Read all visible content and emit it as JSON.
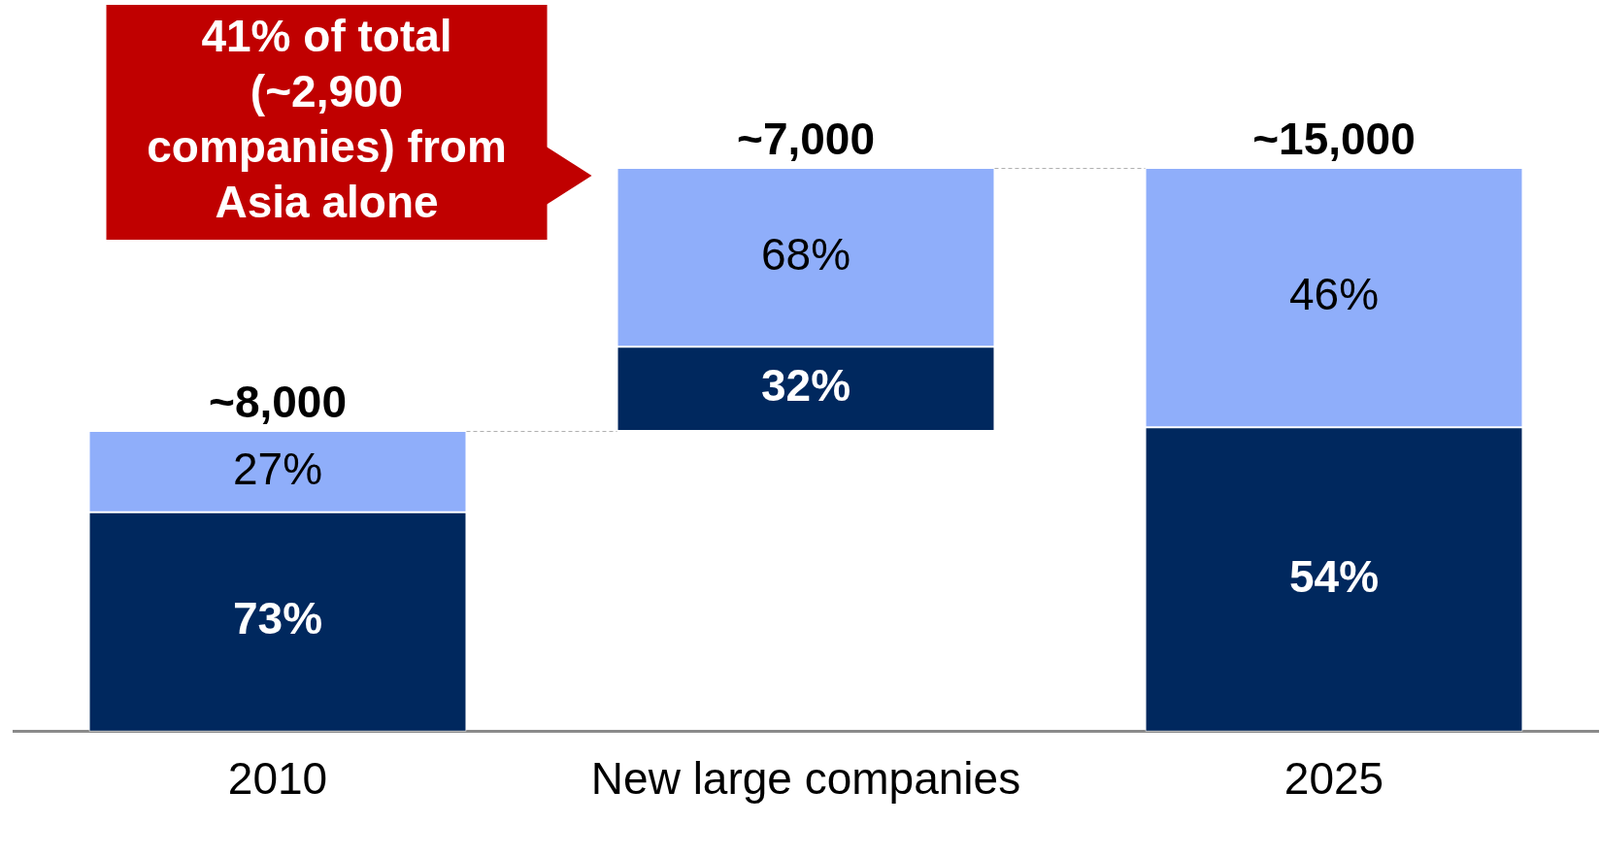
{
  "chart_data": {
    "type": "waterfall",
    "categories": [
      "2010",
      "New large companies",
      "2025"
    ],
    "totals": [
      8000,
      7000,
      15000
    ],
    "total_labels": [
      "~8,000",
      "~7,000",
      "~15,000"
    ],
    "series": [
      {
        "color": "#00285E",
        "values": [
          73,
          32,
          54
        ],
        "value_labels": [
          "73%",
          "32%",
          "54%"
        ]
      },
      {
        "color": "#8FAEFA",
        "values": [
          27,
          68,
          46
        ],
        "value_labels": [
          "27%",
          "68%",
          "46%"
        ]
      }
    ],
    "stacked": true,
    "data_labels": true,
    "tick_labels": "x",
    "grid": false,
    "annotation": "41% of total (~2,900 companies) from Asia alone"
  }
}
